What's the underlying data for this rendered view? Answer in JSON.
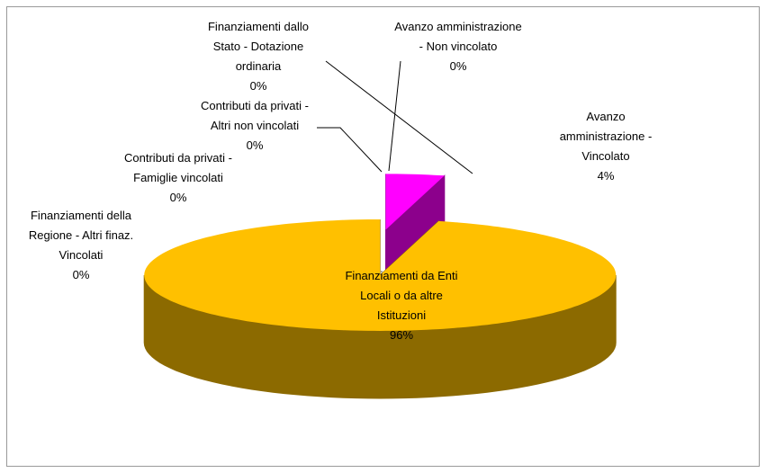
{
  "chart_data": {
    "type": "pie3d",
    "categories": [
      "Avanzo amministrazione - Vincolato",
      "Finanziamenti da Enti Locali o da altre Istituzioni",
      "Finanziamenti della Regione - Altri finaz. Vincolati",
      "Contributi da privati - Famiglie vincolati",
      "Contributi da privati - Altri non vincolati",
      "Finanziamenti dallo Stato - Dotazione ordinaria",
      "Avanzo amministrazione - Non vincolato"
    ],
    "values": [
      4,
      96,
      0,
      0,
      0,
      0,
      0
    ],
    "value_labels": [
      "4%",
      "96%",
      "0%",
      "0%",
      "0%",
      "0%",
      "0%"
    ],
    "colors": [
      "#ff00ff",
      "#ffc000",
      null,
      null,
      null,
      null,
      null
    ]
  }
}
